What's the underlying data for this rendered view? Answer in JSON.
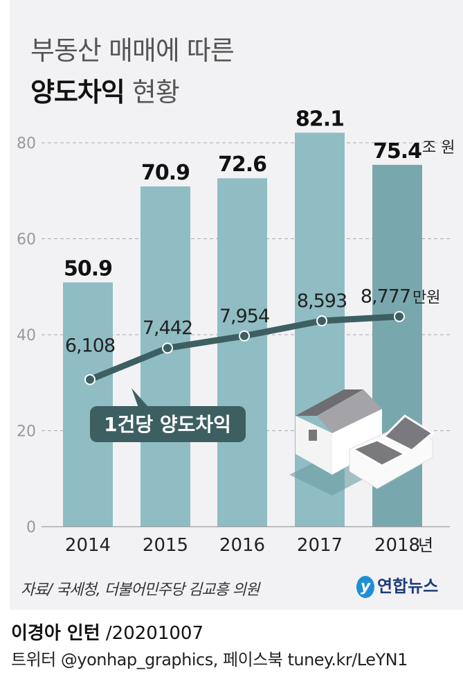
{
  "title": {
    "line1": "부동산 매매에 따른",
    "line2_bold": "양도차익",
    "line2_rest": " 현황"
  },
  "chart_data": [
    {
      "type": "bar",
      "title": "부동산 매매에 따른 양도차익 현황",
      "categories": [
        "2014",
        "2015",
        "2016",
        "2017",
        "2018"
      ],
      "values": [
        50.9,
        70.9,
        72.6,
        82.1,
        75.4
      ],
      "value_labels": [
        "50.9",
        "70.9",
        "72.6",
        "82.1",
        "75.4"
      ],
      "unit": "조 원",
      "x_unit": "년",
      "yticks": [
        "0",
        "20",
        "40",
        "60",
        "80"
      ],
      "ylim": [
        0,
        80
      ],
      "grid": true,
      "colors": {
        "bar": "#8fbdc3",
        "last_bar": "#78a8ad"
      }
    },
    {
      "type": "line",
      "name": "1건당 양도차익",
      "categories": [
        "2014",
        "2015",
        "2016",
        "2017",
        "2018"
      ],
      "values": [
        6108,
        7442,
        7954,
        8593,
        8777
      ],
      "value_labels": [
        "6,108",
        "7,442",
        "7,954",
        "8,593",
        "8,777"
      ],
      "unit": "만원",
      "colors": {
        "line": "#3d5f62"
      }
    }
  ],
  "source": "자료/ 국세청, 더불어민주당 김교흥 의원",
  "logo": {
    "mark": "y",
    "text": "연합뉴스"
  },
  "author": {
    "name": "이경아 인턴",
    "date": " /20201007"
  },
  "social": "트위터 @yonhap_graphics, 페이스북 tuney.kr/LeYN1"
}
